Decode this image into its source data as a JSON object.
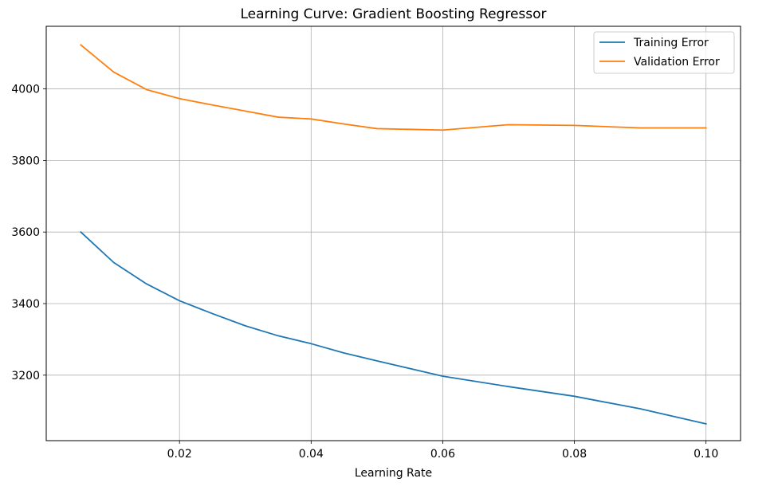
{
  "chart_data": {
    "type": "line",
    "title": "Learning Curve: Gradient Boosting Regressor",
    "xlabel": "Learning Rate",
    "ylabel": "",
    "x": [
      0.005,
      0.01,
      0.015,
      0.02,
      0.025,
      0.03,
      0.035,
      0.04,
      0.045,
      0.05,
      0.06,
      0.07,
      0.08,
      0.09,
      0.1
    ],
    "series": [
      {
        "name": "Training Error",
        "color": "#1f77b4",
        "values": [
          3600,
          3515,
          3455,
          3408,
          3372,
          3338,
          3310,
          3288,
          3262,
          3240,
          3197,
          3168,
          3141,
          3106,
          3064
        ]
      },
      {
        "name": "Validation Error",
        "color": "#ff7f0e",
        "values": [
          4123,
          4047,
          3998,
          3973,
          3955,
          3938,
          3921,
          3916,
          3902,
          3889,
          3885,
          3900,
          3898,
          3891,
          3891
        ]
      }
    ],
    "xlim": [
      -0.00025,
      0.10525
    ],
    "ylim": [
      3017,
      4175
    ],
    "xticks": [
      0.02,
      0.04,
      0.06,
      0.08,
      0.1
    ],
    "xtick_labels": [
      "0.02",
      "0.04",
      "0.06",
      "0.08",
      "0.10"
    ],
    "yticks": [
      3200,
      3400,
      3600,
      3800,
      4000
    ],
    "ytick_labels": [
      "3200",
      "3400",
      "3600",
      "3800",
      "4000"
    ],
    "grid": true,
    "legend_position": "top-right"
  }
}
